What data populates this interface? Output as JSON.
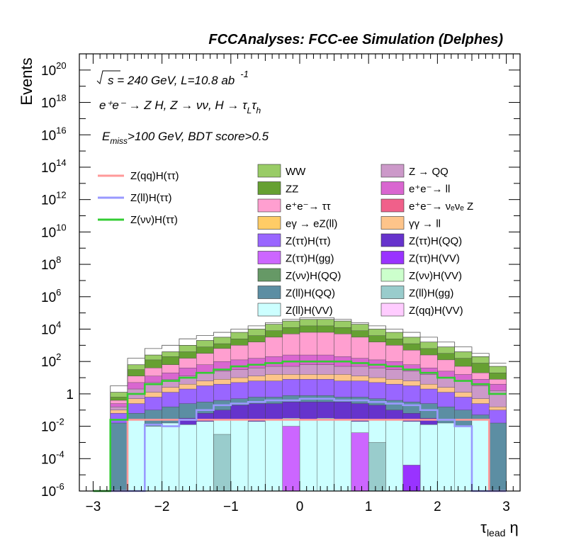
{
  "chart_data": {
    "type": "bar",
    "title": "FCCAnalyses: FCC-ee Simulation (Delphes)",
    "xlabel": "τ_lead η",
    "ylabel": "Events",
    "xlim": [
      -3.2,
      3.2
    ],
    "ylim_log10": [
      -6,
      21
    ],
    "yscale": "log",
    "xticks": [
      "−3",
      "−2",
      "−1",
      "0",
      "1",
      "2",
      "3"
    ],
    "yticks": [
      {
        "exp": -6,
        "label": "-6"
      },
      {
        "exp": -4,
        "label": "-4"
      },
      {
        "exp": -2,
        "label": "-2"
      },
      {
        "exp": 0,
        "label": "1"
      },
      {
        "exp": 2,
        "label": "2"
      },
      {
        "exp": 4,
        "label": "4"
      },
      {
        "exp": 6,
        "label": "6"
      },
      {
        "exp": 8,
        "label": "8"
      },
      {
        "exp": 10,
        "label": "10"
      },
      {
        "exp": 12,
        "label": "12"
      },
      {
        "exp": 14,
        "label": "14"
      },
      {
        "exp": 16,
        "label": "16"
      },
      {
        "exp": 18,
        "label": "18"
      },
      {
        "exp": 20,
        "label": "20"
      }
    ],
    "annotations": {
      "energy": "s = 240 GeV, L=10.8 ab",
      "energy_sup": "-1",
      "process": "e⁺e⁻ → Z H, Z → νν, H → τ",
      "process_sub1": "L",
      "process_tau": "τ",
      "process_sub2": "h",
      "cuts_e": "E",
      "cuts_sub": "miss",
      "cuts": ">100 GeV, BDT score>0.5"
    },
    "bin_edges": [
      -3.0,
      -2.75,
      -2.5,
      -2.25,
      -2.0,
      -1.75,
      -1.5,
      -1.25,
      -1.0,
      -0.75,
      -0.5,
      -0.25,
      0.0,
      0.25,
      0.5,
      0.75,
      1.0,
      1.25,
      1.5,
      1.75,
      2.0,
      2.25,
      2.5,
      2.75,
      3.0
    ],
    "stack_totals_log10": [
      -6,
      0.1,
      1.8,
      2.4,
      2.6,
      3.0,
      3.3,
      3.5,
      3.8,
      4.0,
      4.3,
      4.5,
      4.6,
      4.6,
      4.5,
      4.3,
      4.0,
      3.8,
      3.5,
      3.2,
      2.9,
      2.6,
      2.3,
      1.7
    ],
    "stack_layers_log10": [
      {
        "name": "ZZ",
        "color": "#66a032",
        "values": [
          -6,
          -0.2,
          1.5,
          2.1,
          2.3,
          2.6,
          2.9,
          3.1,
          3.4,
          3.6,
          3.9,
          4.1,
          4.2,
          4.2,
          4.1,
          3.9,
          3.6,
          3.4,
          3.1,
          2.8,
          2.5,
          2.2,
          1.9,
          1.3
        ]
      },
      {
        "name": "e⁺e⁻→ ττ",
        "color": "#ff9fd0",
        "values": [
          -6,
          -0.4,
          1.1,
          1.6,
          1.8,
          2.2,
          2.5,
          2.8,
          3.0,
          3.2,
          3.5,
          3.7,
          3.8,
          3.8,
          3.7,
          3.5,
          3.2,
          3.0,
          2.7,
          2.4,
          2.1,
          1.7,
          1.3,
          0.9
        ]
      },
      {
        "name": "e⁺e⁻→ ll",
        "color": "#d966d0",
        "values": [
          -6,
          -0.6,
          0.7,
          1.1,
          1.3,
          1.6,
          1.8,
          2.0,
          2.1,
          2.2,
          2.3,
          2.4,
          2.4,
          2.4,
          2.3,
          2.2,
          2.1,
          2.0,
          1.8,
          1.6,
          1.4,
          1.2,
          0.9,
          0.6
        ]
      },
      {
        "name": "Z → QQ",
        "color": "#cc99c9",
        "values": [
          -6,
          -0.8,
          0.3,
          0.7,
          0.9,
          1.1,
          1.3,
          1.4,
          1.5,
          1.6,
          1.7,
          1.7,
          1.8,
          1.8,
          1.7,
          1.7,
          1.6,
          1.5,
          1.4,
          1.2,
          1.0,
          0.8,
          0.5,
          0.2
        ]
      },
      {
        "name": "γγ → ll",
        "color": "#fdc48a",
        "values": [
          -6,
          -1.0,
          -0.3,
          0.1,
          0.4,
          0.6,
          0.8,
          0.9,
          1.0,
          1.1,
          1.2,
          1.2,
          1.2,
          1.2,
          1.2,
          1.1,
          1.0,
          0.9,
          0.8,
          0.6,
          0.4,
          0.1,
          -0.3,
          -0.8
        ]
      },
      {
        "name": "Z(ττ)H(ττ)",
        "color": "#9966ff",
        "values": [
          -6,
          -1.2,
          -0.6,
          -0.2,
          0.1,
          0.3,
          0.5,
          0.6,
          0.7,
          0.8,
          0.8,
          0.9,
          0.9,
          0.9,
          0.8,
          0.8,
          0.7,
          0.6,
          0.5,
          0.3,
          0.1,
          -0.2,
          -0.6,
          -1.0
        ]
      },
      {
        "name": "Z(ll)H(QQ)",
        "color": "#5c8ea3",
        "values": [
          -6,
          -1.8,
          -1.2,
          -1.0,
          -0.8,
          -0.6,
          -0.5,
          -0.4,
          -0.3,
          -0.2,
          -0.2,
          -0.1,
          -0.1,
          -0.1,
          -0.2,
          -0.2,
          -0.3,
          -0.4,
          -0.5,
          -0.6,
          -0.8,
          -1.0,
          -1.3,
          -1.8
        ]
      },
      {
        "name": "Z(ττ)H(QQ)",
        "color": "#6633cc",
        "values": [
          -6,
          -6,
          -6,
          -6,
          -6,
          -1.5,
          -1.2,
          -1.0,
          -0.7,
          -0.6,
          -0.6,
          -0.5,
          -0.5,
          -0.5,
          -0.5,
          -0.6,
          -0.7,
          -1.0,
          -1.2,
          -1.5,
          -6,
          -6,
          -6,
          -6
        ]
      },
      {
        "name": "Z(ll)H(VV)",
        "color": "#ccffff",
        "values": [
          -6,
          -6,
          -1.6,
          -2.0,
          -1.8,
          -1.9,
          -1.7,
          -1.6,
          -1.6,
          -1.7,
          -1.6,
          -1.5,
          -1.6,
          -1.5,
          -1.6,
          -1.7,
          -1.6,
          -1.6,
          -1.7,
          -1.9,
          -1.8,
          -2.0,
          -1.6,
          -6
        ]
      }
    ],
    "stack_outline_log10": [
      -6,
      0.5,
      2.2,
      2.8,
      3.0,
      3.4,
      3.6,
      3.8,
      4.0,
      4.2,
      4.4,
      4.6,
      4.7,
      4.7,
      4.6,
      4.4,
      4.2,
      4.0,
      3.8,
      3.5,
      3.2,
      2.9,
      2.5,
      1.9
    ],
    "bar_extras": [
      {
        "name": "Z(ττ)H(gg)",
        "color": "#cc66ff",
        "x0": -0.25,
        "x1": 0.0,
        "log10": -2.0
      },
      {
        "name": "Z(ττ)H(gg)",
        "color": "#cc66ff",
        "x0": 0.75,
        "x1": 1.0,
        "log10": -2.4
      },
      {
        "name": "Z(ττ)H(VV)",
        "color": "#9933ff",
        "x0": 1.5,
        "x1": 1.75,
        "log10": -4.4
      },
      {
        "name": "Z(ll)H(gg)",
        "color": "#99cccc",
        "x0": 1.0,
        "x1": 1.25,
        "log10": -3.0
      },
      {
        "name": "Z(ll)H(gg)",
        "color": "#99cccc",
        "x0": -1.25,
        "x1": -1.0,
        "log10": -2.5
      }
    ],
    "series": [
      {
        "name": "Z(qq)H(ττ)",
        "color": "#ff9999",
        "values_log10": [
          -6,
          -6,
          -1.6,
          -1.6,
          -1.6,
          -1.6,
          -1.6,
          -1.6,
          -1.6,
          -1.6,
          -1.6,
          -1.6,
          -1.6,
          -1.6,
          -1.6,
          -1.6,
          -1.6,
          -1.6,
          -1.6,
          -1.6,
          -1.6,
          -1.6,
          -1.6,
          -6
        ]
      },
      {
        "name": "Z(ll)H(ττ)",
        "color": "#9999ff",
        "values_log10": [
          -6,
          -6,
          -6,
          -1.9,
          -2.0,
          -1.6,
          -1.0,
          -0.7,
          -0.6,
          -0.5,
          -0.4,
          -0.4,
          -0.3,
          -0.3,
          -0.4,
          -0.4,
          -0.5,
          -0.6,
          -0.7,
          -1.0,
          -1.6,
          -2.0,
          -6,
          -6
        ]
      },
      {
        "name": "Z(νν)H(ττ)",
        "color": "#33cc33",
        "values_log10": [
          -6,
          -1.6,
          0.0,
          0.6,
          0.8,
          1.0,
          1.3,
          1.5,
          1.7,
          1.8,
          1.9,
          2.0,
          2.0,
          2.0,
          2.0,
          1.9,
          1.8,
          1.7,
          1.5,
          1.3,
          1.0,
          0.8,
          0.6,
          0.0
        ]
      }
    ],
    "legend_lines": [
      {
        "label": "Z(qq)H(ττ)",
        "color": "#ff9999"
      },
      {
        "label": "Z(ll)H(ττ)",
        "color": "#9999ff"
      },
      {
        "label": "Z(νν)H(ττ)",
        "color": "#33cc33"
      }
    ],
    "legend_fills": [
      {
        "label": "WW",
        "color": "#99cc66"
      },
      {
        "label": "Z → QQ",
        "color": "#cc99c9"
      },
      {
        "label": "ZZ",
        "color": "#66a032"
      },
      {
        "label": "e⁺e⁻→ ll",
        "color": "#d966d0"
      },
      {
        "label": "e⁺e⁻→ ττ",
        "color": "#ff9fd0"
      },
      {
        "label": "e⁺e⁻→ νₑνₑ Z",
        "color": "#f0608a"
      },
      {
        "label": "eγ → eZ(ll)",
        "color": "#ffcc66"
      },
      {
        "label": "γγ → ll",
        "color": "#fdc48a"
      },
      {
        "label": "Z(ττ)H(ττ)",
        "color": "#9966ff"
      },
      {
        "label": "Z(ττ)H(QQ)",
        "color": "#6633cc"
      },
      {
        "label": "Z(ττ)H(gg)",
        "color": "#cc66ff"
      },
      {
        "label": "Z(ττ)H(VV)",
        "color": "#9933ff"
      },
      {
        "label": "Z(νν)H(QQ)",
        "color": "#669966"
      },
      {
        "label": "Z(νν)H(VV)",
        "color": "#ccffcc"
      },
      {
        "label": "Z(ll)H(QQ)",
        "color": "#5c8ea3"
      },
      {
        "label": "Z(ll)H(gg)",
        "color": "#99cccc"
      },
      {
        "label": "Z(ll)H(VV)",
        "color": "#ccffff"
      },
      {
        "label": "Z(qq)H(VV)",
        "color": "#ffccff"
      }
    ]
  }
}
